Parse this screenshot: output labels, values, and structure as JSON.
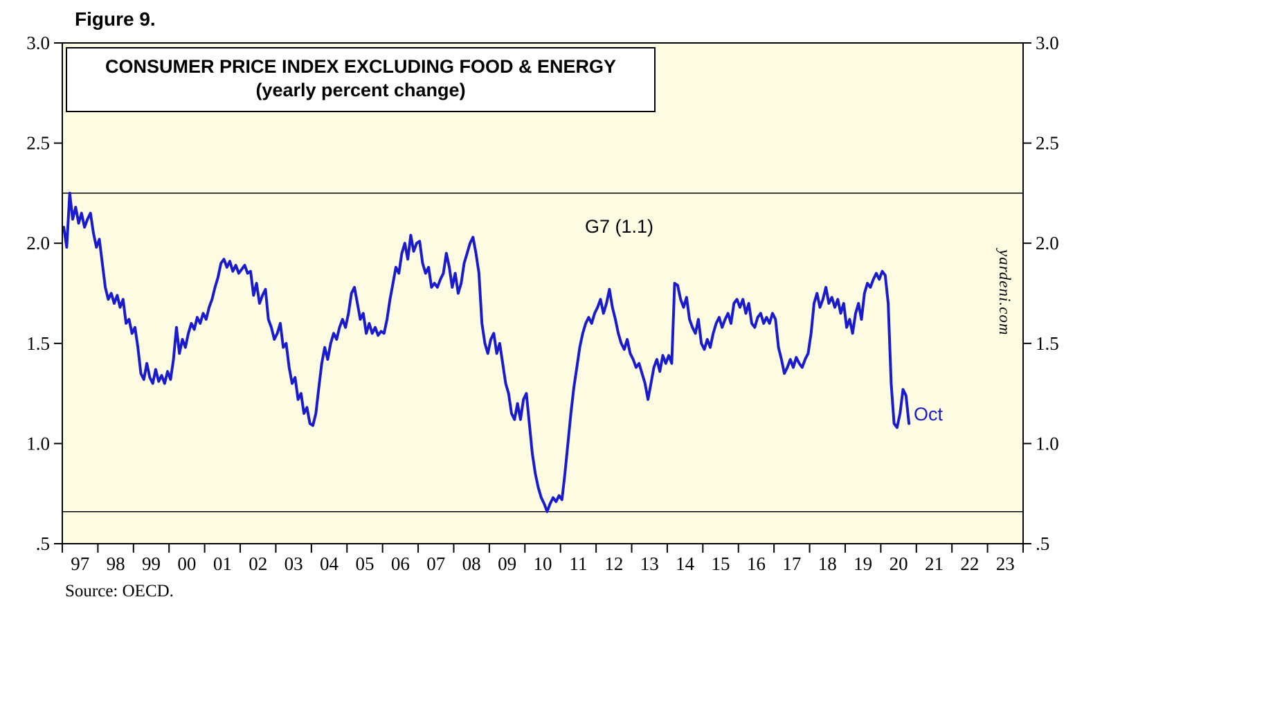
{
  "figure_label": "Figure 9.",
  "source": "Source: OECD.",
  "watermark": "yardeni.com",
  "chart_data": {
    "type": "line",
    "title": "CONSUMER PRICE INDEX EXCLUDING FOOD & ENERGY",
    "subtitle": "(yearly percent change)",
    "series_label": "G7 (1.1)",
    "last_point_label": "Oct",
    "last_point_value": 1.1,
    "xlabel": "",
    "ylabel": "",
    "xlim": [
      1997,
      2024
    ],
    "ylim": [
      0.5,
      3.0
    ],
    "grid": false,
    "legend_position": "inline-annotation",
    "yticks": [
      3.0,
      2.5,
      2.0,
      1.5,
      1.0,
      0.5
    ],
    "ytick_labels": [
      "3.0",
      "2.5",
      "2.0",
      "1.5",
      "1.0",
      ".5"
    ],
    "xtick_labels": [
      "97",
      "98",
      "99",
      "00",
      "01",
      "02",
      "03",
      "04",
      "05",
      "06",
      "07",
      "08",
      "09",
      "10",
      "11",
      "12",
      "13",
      "14",
      "15",
      "16",
      "17",
      "18",
      "19",
      "20",
      "21",
      "22",
      "23"
    ],
    "reference_lines": [
      2.25,
      0.66
    ],
    "colors": {
      "line": "#1B1BCE",
      "plot_bg": "#FDFCE2",
      "axis": "#000000",
      "annotation_blue": "#1B1BCE",
      "text": "#000000"
    },
    "series": [
      {
        "name": "G7",
        "start_year": 1997,
        "start_month": 1,
        "frequency": "monthly",
        "end_label": "Oct 2020",
        "values": [
          2.08,
          1.98,
          2.25,
          2.12,
          2.18,
          2.1,
          2.15,
          2.08,
          2.12,
          2.15,
          2.05,
          1.98,
          2.02,
          1.9,
          1.78,
          1.72,
          1.75,
          1.7,
          1.74,
          1.68,
          1.72,
          1.6,
          1.62,
          1.55,
          1.58,
          1.48,
          1.35,
          1.32,
          1.4,
          1.33,
          1.3,
          1.37,
          1.31,
          1.34,
          1.3,
          1.36,
          1.32,
          1.42,
          1.58,
          1.45,
          1.52,
          1.48,
          1.55,
          1.6,
          1.57,
          1.63,
          1.6,
          1.65,
          1.62,
          1.68,
          1.72,
          1.78,
          1.83,
          1.9,
          1.92,
          1.88,
          1.91,
          1.86,
          1.89,
          1.85,
          1.87,
          1.89,
          1.85,
          1.86,
          1.74,
          1.8,
          1.7,
          1.74,
          1.77,
          1.62,
          1.58,
          1.52,
          1.55,
          1.6,
          1.48,
          1.5,
          1.38,
          1.3,
          1.33,
          1.22,
          1.25,
          1.15,
          1.18,
          1.1,
          1.09,
          1.15,
          1.28,
          1.4,
          1.48,
          1.42,
          1.5,
          1.55,
          1.52,
          1.58,
          1.62,
          1.58,
          1.65,
          1.75,
          1.78,
          1.7,
          1.62,
          1.65,
          1.55,
          1.6,
          1.55,
          1.58,
          1.54,
          1.56,
          1.55,
          1.62,
          1.72,
          1.8,
          1.88,
          1.85,
          1.95,
          2.0,
          1.92,
          2.04,
          1.96,
          2.0,
          2.01,
          1.9,
          1.85,
          1.88,
          1.78,
          1.8,
          1.78,
          1.82,
          1.85,
          1.95,
          1.88,
          1.78,
          1.85,
          1.75,
          1.8,
          1.9,
          1.95,
          2.0,
          2.03,
          1.95,
          1.85,
          1.6,
          1.5,
          1.45,
          1.52,
          1.55,
          1.45,
          1.5,
          1.4,
          1.3,
          1.25,
          1.15,
          1.12,
          1.2,
          1.12,
          1.22,
          1.25,
          1.1,
          0.95,
          0.85,
          0.78,
          0.73,
          0.7,
          0.66,
          0.7,
          0.73,
          0.71,
          0.74,
          0.72,
          0.85,
          1.0,
          1.15,
          1.28,
          1.38,
          1.48,
          1.55,
          1.6,
          1.63,
          1.6,
          1.65,
          1.68,
          1.72,
          1.65,
          1.7,
          1.77,
          1.68,
          1.62,
          1.55,
          1.5,
          1.47,
          1.52,
          1.45,
          1.42,
          1.38,
          1.4,
          1.35,
          1.3,
          1.22,
          1.3,
          1.38,
          1.42,
          1.36,
          1.44,
          1.4,
          1.44,
          1.4,
          1.8,
          1.79,
          1.72,
          1.68,
          1.73,
          1.62,
          1.58,
          1.55,
          1.62,
          1.5,
          1.47,
          1.52,
          1.48,
          1.55,
          1.6,
          1.63,
          1.58,
          1.62,
          1.65,
          1.6,
          1.7,
          1.72,
          1.68,
          1.72,
          1.65,
          1.7,
          1.6,
          1.58,
          1.63,
          1.65,
          1.6,
          1.63,
          1.6,
          1.65,
          1.62,
          1.48,
          1.42,
          1.35,
          1.38,
          1.42,
          1.38,
          1.43,
          1.4,
          1.38,
          1.42,
          1.45,
          1.55,
          1.7,
          1.75,
          1.68,
          1.72,
          1.78,
          1.7,
          1.73,
          1.68,
          1.72,
          1.65,
          1.7,
          1.58,
          1.62,
          1.55,
          1.65,
          1.7,
          1.62,
          1.75,
          1.8,
          1.78,
          1.82,
          1.85,
          1.82,
          1.86,
          1.84,
          1.7,
          1.3,
          1.1,
          1.08,
          1.15,
          1.27,
          1.24,
          1.1
        ]
      }
    ]
  }
}
